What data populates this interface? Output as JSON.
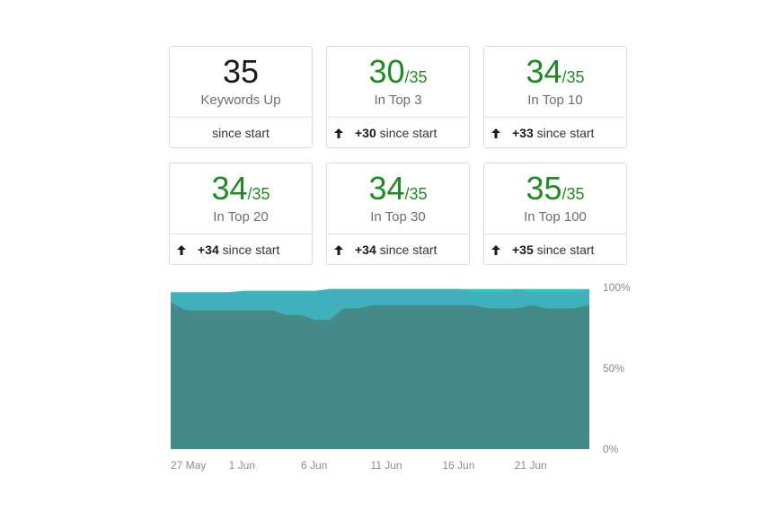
{
  "cards": [
    {
      "value": "35",
      "denominator": "",
      "label": "Keywords Up",
      "delta": "",
      "since": "since start",
      "green": false
    },
    {
      "value": "30",
      "denominator": "/35",
      "label": "In Top 3",
      "delta": "+30",
      "since": "since start",
      "green": true
    },
    {
      "value": "34",
      "denominator": "/35",
      "label": "In Top 10",
      "delta": "+33",
      "since": "since start",
      "green": true
    },
    {
      "value": "34",
      "denominator": "/35",
      "label": "In Top 20",
      "delta": "+34",
      "since": "since start",
      "green": true
    },
    {
      "value": "34",
      "denominator": "/35",
      "label": "In Top 30",
      "delta": "+34",
      "since": "since start",
      "green": true
    },
    {
      "value": "35",
      "denominator": "/35",
      "label": "In Top 100",
      "delta": "+35",
      "since": "since start",
      "green": true
    }
  ],
  "icons": {
    "delta_arrow": "arrow-up-icon"
  },
  "colors": {
    "green": "#1f8a23",
    "series_top10": "#458a88",
    "series_top30": "#3fb0bc",
    "series_top100": "#2fc6c4"
  },
  "chart_data": {
    "type": "area",
    "x": [
      "27 May",
      "28 May",
      "29 May",
      "30 May",
      "31 May",
      "1 Jun",
      "2 Jun",
      "3 Jun",
      "4 Jun",
      "5 Jun",
      "6 Jun",
      "7 Jun",
      "8 Jun",
      "9 Jun",
      "10 Jun",
      "11 Jun",
      "12 Jun",
      "13 Jun",
      "14 Jun",
      "15 Jun",
      "16 Jun",
      "17 Jun",
      "18 Jun",
      "19 Jun",
      "20 Jun",
      "21 Jun",
      "22 Jun",
      "23 Jun",
      "24 Jun",
      "25 Jun"
    ],
    "x_tick_labels": [
      "27 May",
      "1 Jun",
      "6 Jun",
      "11 Jun",
      "16 Jun",
      "21 Jun"
    ],
    "y_tick_labels": [
      "100%",
      "50%",
      "0%"
    ],
    "ylim": [
      0,
      100
    ],
    "series": [
      {
        "values": [
          97,
          97,
          97,
          97,
          97,
          98,
          98,
          98,
          98,
          98,
          98,
          99,
          99,
          99,
          99,
          99,
          99,
          99,
          99,
          99,
          99,
          99,
          99,
          99,
          99,
          99,
          99,
          99,
          99,
          99
        ]
      },
      {
        "values": [
          97,
          97,
          97,
          97,
          97,
          97,
          97,
          97,
          97,
          97,
          97,
          99,
          99,
          99,
          99,
          99,
          99,
          99,
          99,
          99,
          99,
          97,
          97,
          97,
          99,
          97,
          97,
          97,
          97,
          99
        ]
      },
      {
        "values": [
          91,
          86,
          86,
          86,
          86,
          86,
          86,
          86,
          83,
          83,
          80,
          80,
          87,
          87,
          89,
          89,
          89,
          89,
          89,
          89,
          89,
          89,
          87,
          87,
          87,
          89,
          87,
          87,
          87,
          89
        ]
      }
    ]
  }
}
